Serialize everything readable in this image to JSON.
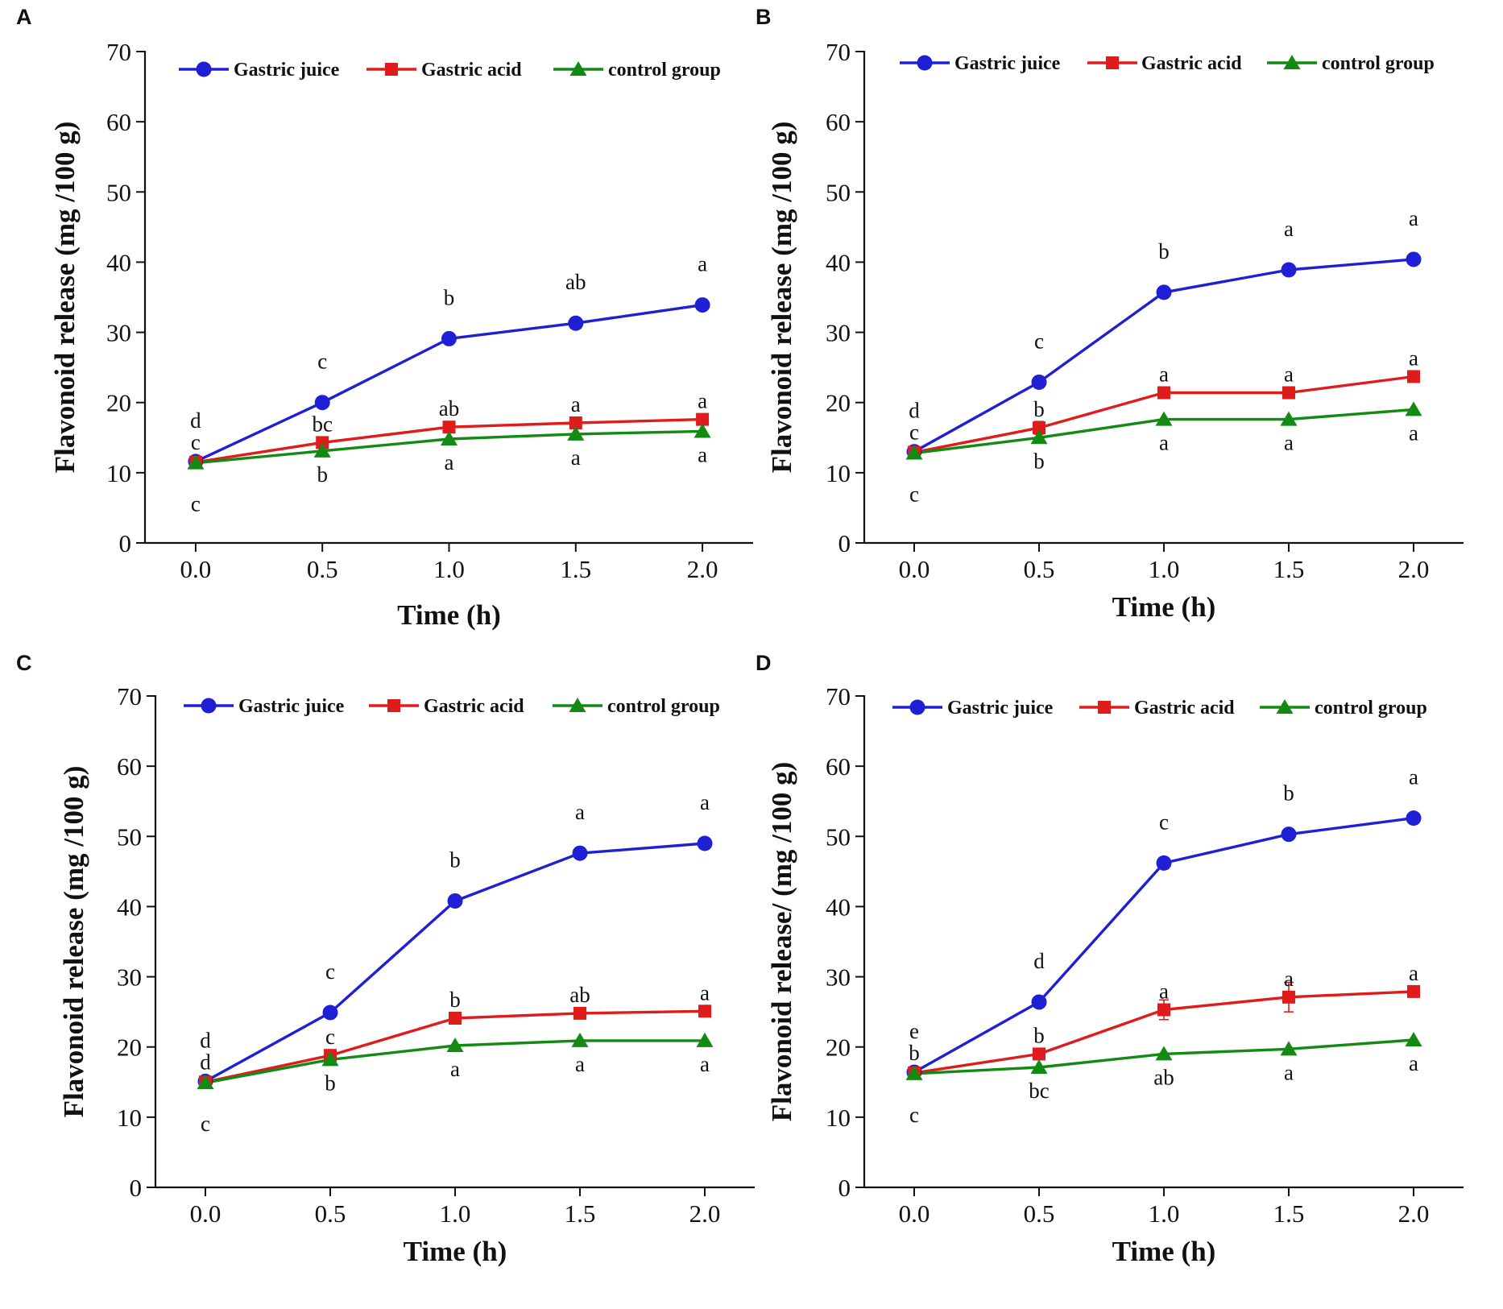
{
  "figure": {
    "colors": {
      "juice": "#1f1fd6",
      "acid": "#e01b1b",
      "control": "#138a13"
    }
  },
  "chart_data": [
    {
      "panel": "A",
      "type": "line",
      "xlabel": "Time (h)",
      "ylabel": "Flavonoid release (mg /100 g)",
      "ylim": [
        0,
        70
      ],
      "xlim": [
        -0.2,
        2.2
      ],
      "xticks": [
        "0.0",
        "0.5",
        "1.0",
        "1.5",
        "2.0"
      ],
      "yticks": [
        "0",
        "10",
        "20",
        "30",
        "40",
        "50",
        "60",
        "70"
      ],
      "x": [
        0.0,
        0.5,
        1.0,
        1.5,
        2.0
      ],
      "legend": "top",
      "series": [
        {
          "name": "Gastric juice",
          "key": "juice",
          "marker": "circle",
          "values": [
            11.6,
            20.0,
            29.1,
            31.3,
            33.9
          ],
          "errors": [
            0.3,
            0.5,
            0.5,
            0.4,
            0.4
          ],
          "labels": [
            "d",
            "c",
            "b",
            "ab",
            "a"
          ]
        },
        {
          "name": "Gastric acid",
          "key": "acid",
          "marker": "square",
          "values": [
            11.5,
            14.3,
            16.5,
            17.1,
            17.6
          ],
          "errors": [
            0.3,
            0.4,
            0.4,
            0.3,
            0.3
          ],
          "labels": [
            "c",
            "bc",
            "ab",
            "a",
            "a"
          ]
        },
        {
          "name": "control group",
          "key": "control",
          "marker": "triangle",
          "values": [
            11.4,
            13.1,
            14.8,
            15.5,
            15.9
          ],
          "errors": [
            0.3,
            0.3,
            0.3,
            0.3,
            0.3
          ],
          "labels": [
            "c",
            "b",
            "a",
            "a",
            "a"
          ]
        }
      ]
    },
    {
      "panel": "B",
      "type": "line",
      "xlabel": "Time (h)",
      "ylabel": "Flavonoid release (mg /100 g)",
      "ylim": [
        0,
        70
      ],
      "xlim": [
        -0.2,
        2.2
      ],
      "xticks": [
        "0.0",
        "0.5",
        "1.0",
        "1.5",
        "2.0"
      ],
      "yticks": [
        "0",
        "10",
        "20",
        "30",
        "40",
        "50",
        "60",
        "70"
      ],
      "x": [
        0.0,
        0.5,
        1.0,
        1.5,
        2.0
      ],
      "legend": "top",
      "series": [
        {
          "name": "Gastric juice",
          "key": "juice",
          "marker": "circle",
          "values": [
            13.0,
            22.9,
            35.7,
            38.9,
            40.4
          ],
          "errors": [
            0.4,
            0.8,
            0.4,
            0.4,
            0.4
          ],
          "labels": [
            "d",
            "c",
            "b",
            "a",
            "a"
          ]
        },
        {
          "name": "Gastric acid",
          "key": "acid",
          "marker": "square",
          "values": [
            12.9,
            16.4,
            21.4,
            21.4,
            23.7
          ],
          "errors": [
            0.4,
            0.9,
            0.4,
            0.4,
            0.4
          ],
          "labels": [
            "c",
            "b",
            "a",
            "a",
            "a"
          ]
        },
        {
          "name": "control group",
          "key": "control",
          "marker": "triangle",
          "values": [
            12.8,
            15.0,
            17.6,
            17.6,
            19.0
          ],
          "errors": [
            0.3,
            0.3,
            0.3,
            0.3,
            0.3
          ],
          "labels": [
            "c",
            "b",
            "a",
            "a",
            "a"
          ]
        }
      ]
    },
    {
      "panel": "C",
      "type": "line",
      "xlabel": "Time (h)",
      "ylabel": "Flavonoid release (mg /100 g)",
      "ylim": [
        0,
        70
      ],
      "xlim": [
        -0.2,
        2.2
      ],
      "xticks": [
        "0.0",
        "0.5",
        "1.0",
        "1.5",
        "2.0"
      ],
      "yticks": [
        "0",
        "10",
        "20",
        "30",
        "40",
        "50",
        "60",
        "70"
      ],
      "x": [
        0.0,
        0.5,
        1.0,
        1.5,
        2.0
      ],
      "legend": "top",
      "series": [
        {
          "name": "Gastric juice",
          "key": "juice",
          "marker": "circle",
          "values": [
            15.1,
            24.9,
            40.8,
            47.6,
            49.0
          ],
          "errors": [
            0.4,
            0.5,
            0.5,
            0.4,
            0.4
          ],
          "labels": [
            "d",
            "c",
            "b",
            "a",
            "a"
          ]
        },
        {
          "name": "Gastric acid",
          "key": "acid",
          "marker": "square",
          "values": [
            15.0,
            18.8,
            24.1,
            24.8,
            25.1
          ],
          "errors": [
            0.4,
            0.4,
            0.4,
            0.4,
            0.4
          ],
          "labels": [
            "d",
            "c",
            "b",
            "ab",
            "a"
          ]
        },
        {
          "name": "control group",
          "key": "control",
          "marker": "triangle",
          "values": [
            14.9,
            18.2,
            20.2,
            20.9,
            20.9
          ],
          "errors": [
            0.3,
            0.3,
            0.3,
            0.3,
            0.3
          ],
          "labels": [
            "c",
            "b",
            "a",
            "a",
            "a"
          ]
        }
      ]
    },
    {
      "panel": "D",
      "type": "line",
      "xlabel": "Time (h)",
      "ylabel": "Flavonoid release/ (mg /100 g)",
      "ylim": [
        0,
        70
      ],
      "xlim": [
        -0.2,
        2.2
      ],
      "xticks": [
        "0.0",
        "0.5",
        "1.0",
        "1.5",
        "2.0"
      ],
      "yticks": [
        "0",
        "10",
        "20",
        "30",
        "40",
        "50",
        "60",
        "70"
      ],
      "x": [
        0.0,
        0.5,
        1.0,
        1.5,
        2.0
      ],
      "legend": "top",
      "series": [
        {
          "name": "Gastric juice",
          "key": "juice",
          "marker": "circle",
          "values": [
            16.4,
            26.4,
            46.2,
            50.3,
            52.6
          ],
          "errors": [
            0.4,
            0.5,
            0.8,
            0.5,
            0.4
          ],
          "labels": [
            "e",
            "d",
            "c",
            "b",
            "a"
          ]
        },
        {
          "name": "Gastric acid",
          "key": "acid",
          "marker": "square",
          "values": [
            16.3,
            19.0,
            25.3,
            27.1,
            27.9
          ],
          "errors": [
            0.4,
            0.5,
            1.4,
            2.1,
            0.5
          ],
          "labels": [
            "b",
            "b",
            "a",
            "a",
            "a"
          ]
        },
        {
          "name": "control group",
          "key": "control",
          "marker": "triangle",
          "values": [
            16.2,
            17.1,
            19.0,
            19.7,
            21.0
          ],
          "errors": [
            0.3,
            0.3,
            0.3,
            0.3,
            0.3
          ],
          "labels": [
            "c",
            "bc",
            "ab",
            "a",
            "a"
          ]
        }
      ]
    }
  ]
}
